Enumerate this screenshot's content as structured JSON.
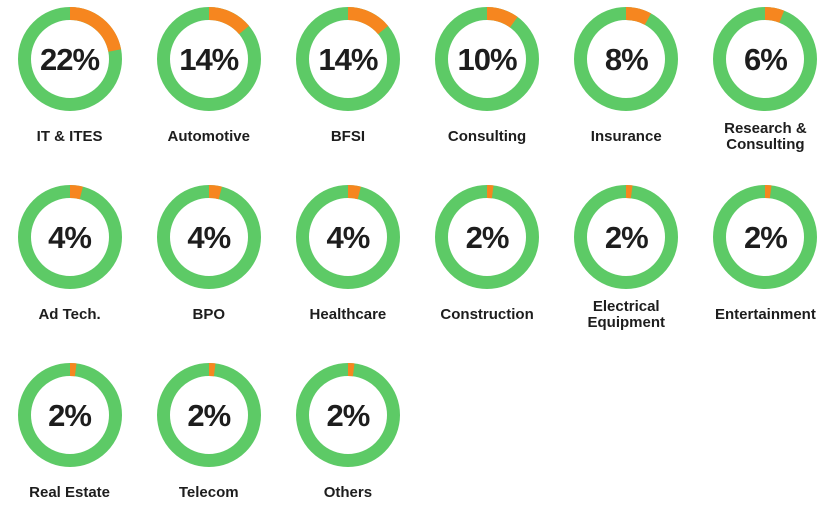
{
  "page": {
    "background": "#ffffff"
  },
  "chart_data": {
    "type": "pie",
    "subtype": "donut-grid",
    "title": "",
    "unit": "%",
    "legend_position": "none",
    "colors": {
      "segment": "#f6861f",
      "ring": "#5dca66",
      "text": "#1d1d1d"
    },
    "rows": [
      6,
      6,
      3
    ],
    "items": [
      {
        "label": "IT & ITES",
        "value": 22,
        "pct_label": "22%"
      },
      {
        "label": "Automotive",
        "value": 14,
        "pct_label": "14%"
      },
      {
        "label": "BFSI",
        "value": 14,
        "pct_label": "14%"
      },
      {
        "label": "Consulting",
        "value": 10,
        "pct_label": "10%"
      },
      {
        "label": "Insurance",
        "value": 8,
        "pct_label": "8%"
      },
      {
        "label": "Research & Consulting",
        "value": 6,
        "pct_label": "6%"
      },
      {
        "label": "Ad Tech.",
        "value": 4,
        "pct_label": "4%"
      },
      {
        "label": "BPO",
        "value": 4,
        "pct_label": "4%"
      },
      {
        "label": "Healthcare",
        "value": 4,
        "pct_label": "4%"
      },
      {
        "label": "Construction",
        "value": 2,
        "pct_label": "2%"
      },
      {
        "label": "Electrical Equipment",
        "value": 2,
        "pct_label": "2%"
      },
      {
        "label": "Entertainment",
        "value": 2,
        "pct_label": "2%"
      },
      {
        "label": "Real Estate",
        "value": 2,
        "pct_label": "2%"
      },
      {
        "label": "Telecom",
        "value": 2,
        "pct_label": "2%"
      },
      {
        "label": "Others",
        "value": 2,
        "pct_label": "2%"
      }
    ]
  }
}
